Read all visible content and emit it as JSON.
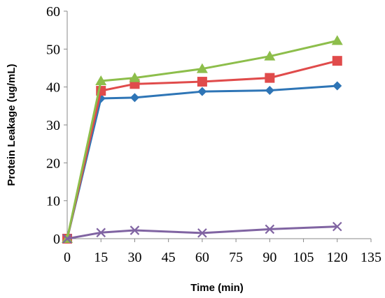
{
  "chart_data": {
    "type": "line",
    "title": "",
    "xlabel": "Time (min)",
    "ylabel": "Protein Leakage (ug/mL)",
    "xlim": [
      0,
      135
    ],
    "ylim": [
      0,
      60
    ],
    "xticks": [
      "0",
      "15",
      "30",
      "45",
      "60",
      "75",
      "90",
      "105",
      "120",
      "135"
    ],
    "yticks": [
      "0",
      "10",
      "20",
      "30",
      "40",
      "50",
      "60"
    ],
    "grid": false,
    "legend": "none",
    "x": [
      0,
      15,
      30,
      60,
      90,
      120
    ],
    "series": [
      {
        "values": [
          0,
          37.0,
          37.2,
          38.8,
          39.1,
          40.3
        ],
        "color": "#2E75B6",
        "marker": "diamond"
      },
      {
        "values": [
          0,
          39.0,
          40.8,
          41.4,
          42.4,
          46.9
        ],
        "color": "#E04B4B",
        "marker": "square"
      },
      {
        "values": [
          0,
          41.6,
          42.4,
          44.8,
          48.1,
          52.2
        ],
        "color": "#8DBE4B",
        "marker": "triangle"
      },
      {
        "values": [
          0,
          1.6,
          2.2,
          1.5,
          2.5,
          3.2
        ],
        "color": "#8064A2",
        "marker": "x"
      }
    ]
  }
}
